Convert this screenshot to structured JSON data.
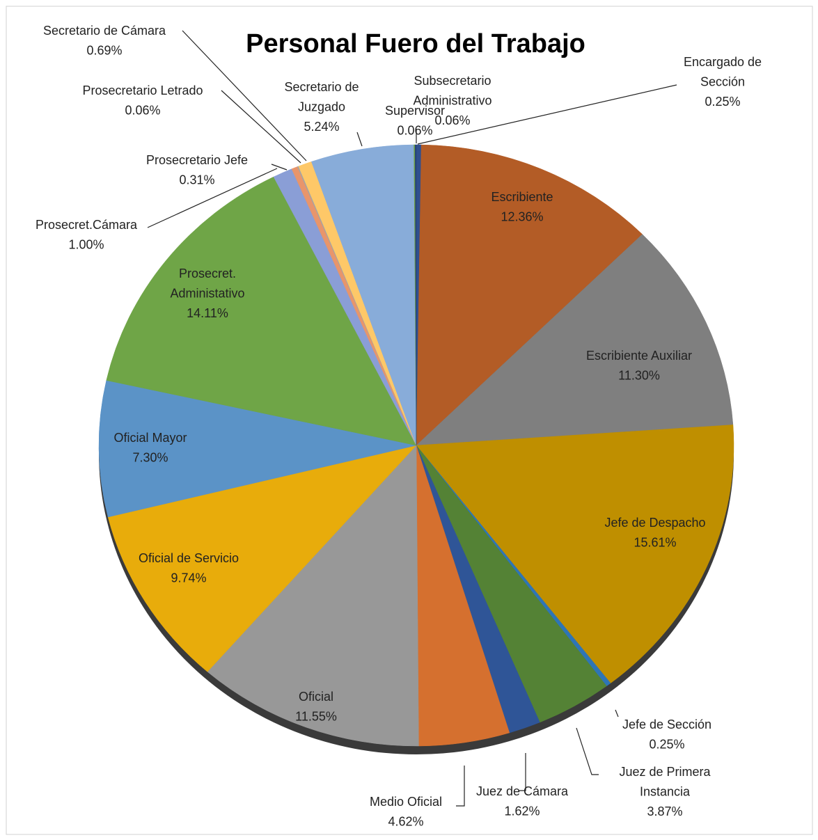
{
  "chart_data": {
    "type": "pie",
    "title": "Personal Fuero del Trabajo",
    "categories": [
      "Encargado de Sección",
      "Escribiente",
      "Escribiente Auxiliar",
      "Jefe de Despacho",
      "Jefe de Sección",
      "Juez de Primera Instancia",
      "Juez de Cámara",
      "Medio Oficial",
      "Oficial",
      "Oficial de Servicio",
      "Oficial Mayor",
      "Prosecret. Administativo",
      "Prosecret.Cámara",
      "Prosecretario Jefe",
      "Prosecretario Letrado",
      "Secretario de Cámara",
      "Secretario de Juzgado",
      "Subsecretario Administrativo",
      "Supervisor"
    ],
    "values": [
      0.25,
      12.36,
      11.3,
      15.61,
      0.25,
      3.87,
      1.62,
      4.62,
      11.55,
      9.74,
      7.3,
      14.11,
      1.0,
      0.31,
      0.06,
      0.69,
      5.24,
      0.06,
      0.06
    ],
    "value_labels": [
      "0.25%",
      "12.36%",
      "11.30%",
      "15.61%",
      "0.25%",
      "3.87%",
      "1.62%",
      "4.62%",
      "11.55%",
      "9.74%",
      "7.30%",
      "14.11%",
      "1.00%",
      "0.31%",
      "0.06%",
      "0.69%",
      "5.24%",
      "0.06%",
      "0.06%"
    ],
    "colors": [
      "#2f4f8f",
      "#b35c26",
      "#7f7f7f",
      "#bf8f00",
      "#2e75b6",
      "#548235",
      "#2f5597",
      "#d5702f",
      "#989898",
      "#e8ac0b",
      "#5b93c7",
      "#6fa547",
      "#8a9ed6",
      "#e8956b",
      "#a5a5a5",
      "#fec868",
      "#88acd9",
      "#6e9f46",
      "#264478"
    ]
  }
}
